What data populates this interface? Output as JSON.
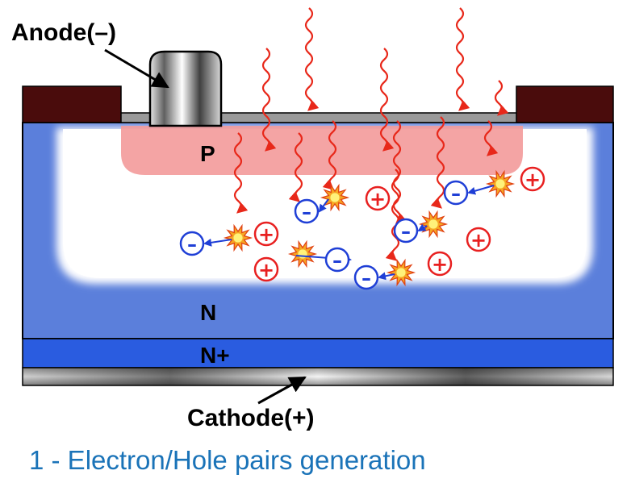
{
  "labels": {
    "anode": "Anode(–)",
    "p_region": "P",
    "n_region": "N",
    "nplus_region": "N+",
    "cathode": "Cathode(+)"
  },
  "caption": "1 - Electron/Hole pairs generation",
  "carrier_symbols": {
    "electron": "–",
    "hole": "+"
  },
  "colors": {
    "n_region": "#5b7fdb",
    "nplus_region": "#2a5ce0",
    "p_region": "#f39a9a",
    "contact_metal": "#4a0c0c",
    "photon": "#e8281a",
    "electron": "#1f3fd6",
    "hole": "#e82020",
    "caption": "#1a73b8"
  }
}
